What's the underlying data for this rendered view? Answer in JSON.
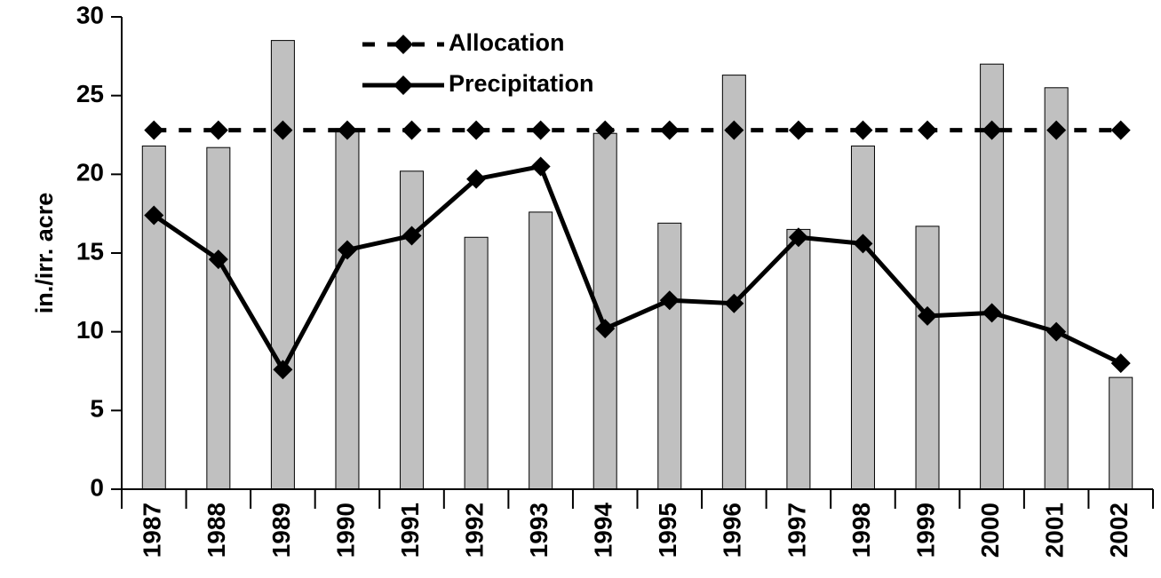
{
  "chart_data": {
    "type": "bar",
    "y_label": "in./irr. acre",
    "categories": [
      "1987",
      "1988",
      "1989",
      "1990",
      "1991",
      "1992",
      "1993",
      "1994",
      "1995",
      "1996",
      "1997",
      "1998",
      "1999",
      "2000",
      "2001",
      "2002"
    ],
    "series": [
      {
        "type": "bar",
        "color": "#c0c0c0",
        "values": [
          21.8,
          21.7,
          28.5,
          22.9,
          20.2,
          16.0,
          17.6,
          22.6,
          16.9,
          26.3,
          16.5,
          21.8,
          16.7,
          27.0,
          25.5,
          7.1
        ]
      },
      {
        "name": "Allocation",
        "type": "line",
        "linestyle": "dashed",
        "color": "#000000",
        "values": [
          22.8,
          22.8,
          22.8,
          22.8,
          22.8,
          22.8,
          22.8,
          22.8,
          22.8,
          22.8,
          22.8,
          22.8,
          22.8,
          22.8,
          22.8,
          22.8
        ]
      },
      {
        "name": "Precipitation",
        "type": "line",
        "linestyle": "solid",
        "color": "#000000",
        "values": [
          17.4,
          14.6,
          7.6,
          15.2,
          16.1,
          19.7,
          20.5,
          10.2,
          12.0,
          11.8,
          16.0,
          15.6,
          11.0,
          11.2,
          10.0,
          8.0
        ]
      }
    ],
    "ylim": [
      0,
      30
    ],
    "yticks": [
      0,
      5,
      10,
      15,
      20,
      25,
      30
    ],
    "grid": false,
    "legend": "top"
  }
}
